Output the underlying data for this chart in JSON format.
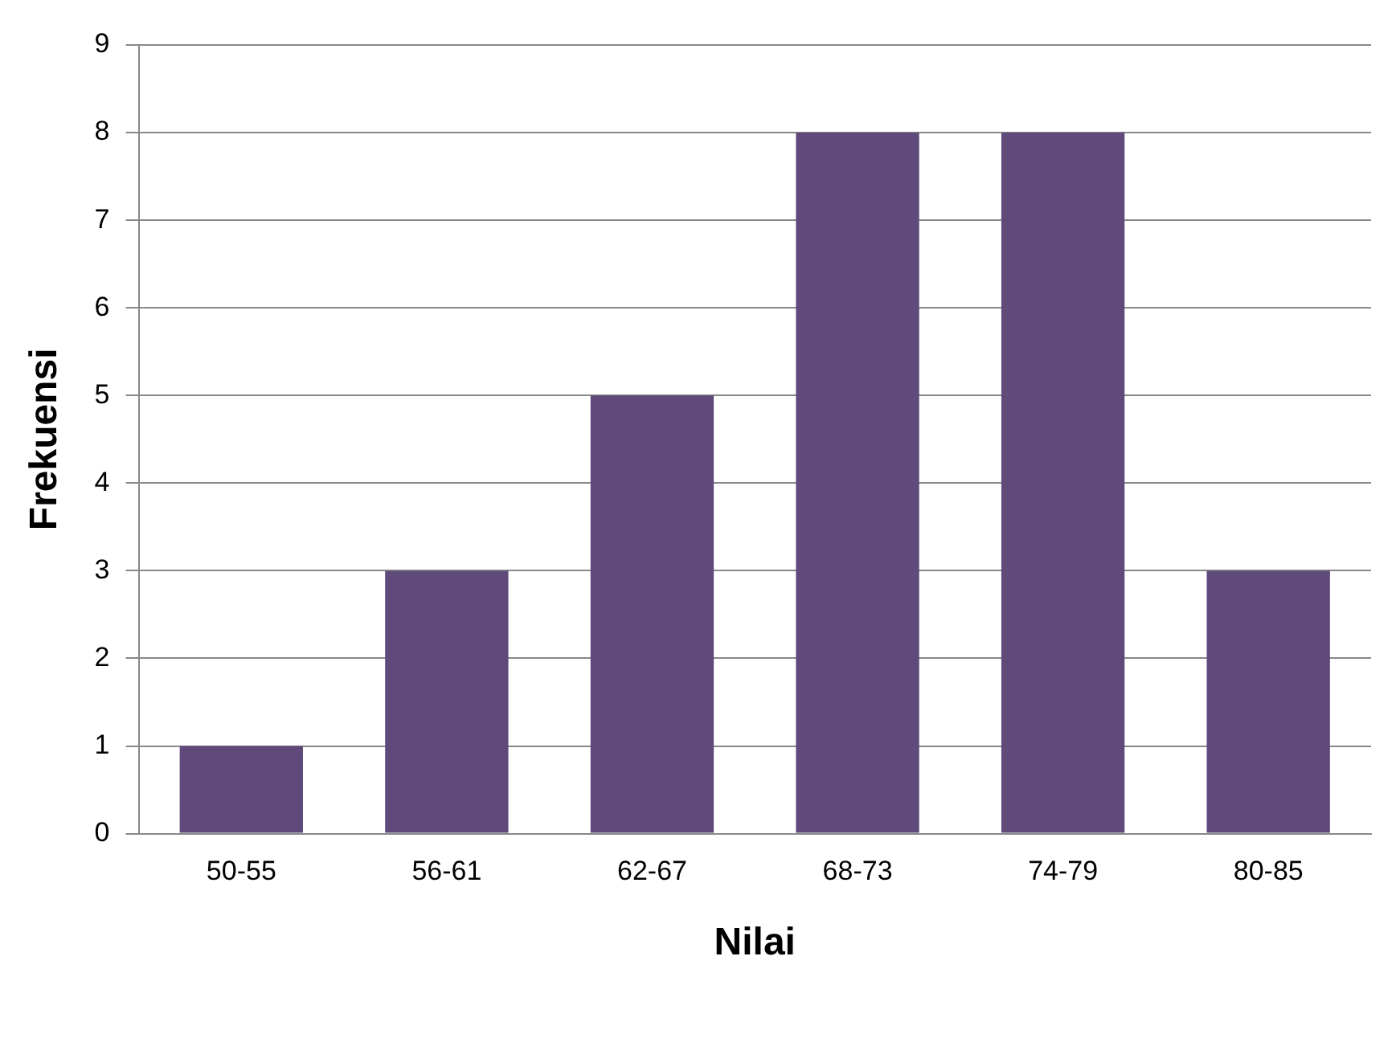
{
  "chart_data": {
    "type": "bar",
    "xlabel": "Nilai",
    "ylabel": "Frekuensi",
    "categories": [
      "50-55",
      "56-61",
      "62-67",
      "68-73",
      "74-79",
      "80-85"
    ],
    "values": [
      1,
      3,
      5,
      8,
      8,
      3
    ],
    "color": "#5f4a7b",
    "ylim": [
      0,
      9
    ],
    "yticks": [
      0,
      1,
      2,
      3,
      4,
      5,
      6,
      7,
      8,
      9
    ],
    "grid": "y",
    "legend": false
  }
}
